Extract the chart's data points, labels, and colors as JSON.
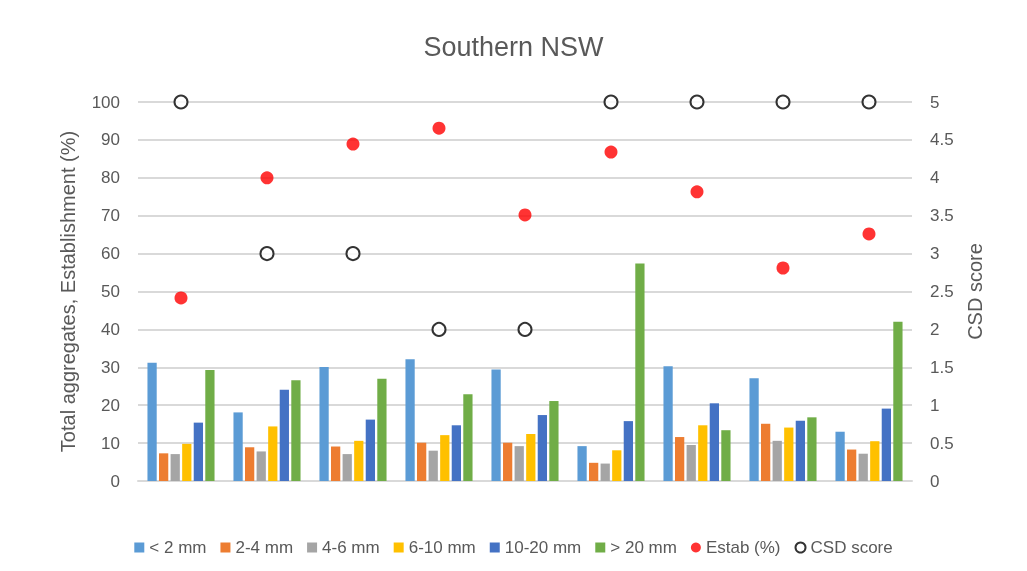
{
  "chart_data": {
    "type": "bar",
    "title": "Southern NSW",
    "ylabel": "Total aggregates, Establishment (%)",
    "y2label": "CSD score",
    "categories": [
      null,
      null,
      null,
      null,
      null,
      null,
      null,
      null,
      null
    ],
    "series": [
      {
        "name": "< 2 mm",
        "color": "#5b9bd5",
        "values": [
          31.2,
          18.1,
          30.1,
          32.1,
          29.4,
          9.2,
          30.3,
          27.1,
          13.0
        ]
      },
      {
        "name": "2-4 mm",
        "color": "#ed7d31",
        "values": [
          7.3,
          8.9,
          9.1,
          10.1,
          10.1,
          4.8,
          11.6,
          15.1,
          8.3
        ]
      },
      {
        "name": "4-6 mm",
        "color": "#a5a5a5",
        "values": [
          7.1,
          7.8,
          7.1,
          8.0,
          9.2,
          4.6,
          9.5,
          10.6,
          7.2
        ]
      },
      {
        "name": "6-10 mm",
        "color": "#ffc000",
        "values": [
          9.8,
          14.4,
          10.6,
          12.1,
          12.4,
          8.1,
          14.7,
          14.1,
          10.5
        ]
      },
      {
        "name": "10-20 mm",
        "color": "#4472c4",
        "values": [
          15.4,
          24.1,
          16.2,
          14.7,
          17.4,
          15.8,
          20.5,
          15.9,
          19.1
        ]
      },
      {
        "name": "> 20 mm",
        "color": "#70ad47",
        "values": [
          29.3,
          26.6,
          27.0,
          22.9,
          21.1,
          57.4,
          13.4,
          16.8,
          42.0
        ]
      },
      {
        "name": "Estab (%)",
        "type": "scatter",
        "color": "#ff0000",
        "values": [
          48.3,
          80,
          88.9,
          93.1,
          70.2,
          86.8,
          76.3,
          56.2,
          65.2
        ]
      },
      {
        "name": "CSD score",
        "type": "scatter",
        "axis": "y2",
        "color": "#000000",
        "values": [
          5,
          3,
          3,
          2,
          2,
          5,
          5,
          5,
          5
        ]
      }
    ],
    "ylim": [
      0,
      100
    ],
    "yticks": [
      0,
      10,
      20,
      30,
      40,
      50,
      60,
      70,
      80,
      90,
      100
    ],
    "y2lim": [
      0,
      5
    ],
    "y2ticks": [
      0,
      0.5,
      1,
      1.5,
      2,
      2.5,
      3,
      3.5,
      4,
      4.5,
      5
    ],
    "grid": "y",
    "legend": "bottom",
    "marker": "circle"
  }
}
